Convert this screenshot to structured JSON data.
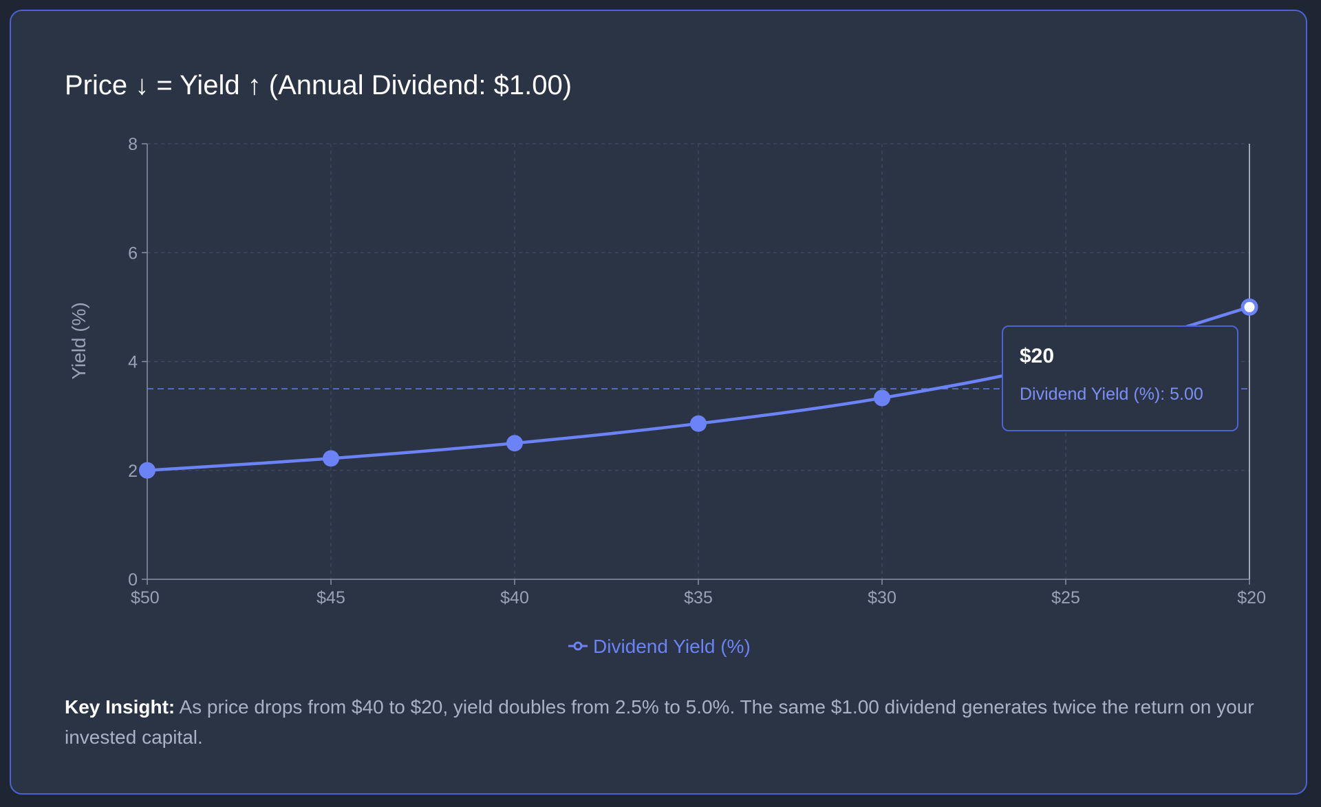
{
  "title": "Price ↓ = Yield ↑ (Annual Dividend: $1.00)",
  "colors": {
    "series": "#6b83f7",
    "card_border": "#4b63d6",
    "background": "#2b3445"
  },
  "chart_data": {
    "type": "line",
    "categories": [
      "$50",
      "$45",
      "$40",
      "$35",
      "$30",
      "$25",
      "$20"
    ],
    "x_prices": [
      50,
      45,
      40,
      35,
      30,
      25,
      20
    ],
    "series": [
      {
        "name": "Dividend Yield (%)",
        "values": [
          2.0,
          2.22,
          2.5,
          2.86,
          3.33,
          4.0,
          5.0
        ]
      }
    ],
    "xlabel": "",
    "ylabel": "Yield (%)",
    "ylim": [
      0,
      8
    ],
    "yticks": [
      "0",
      "2",
      "4",
      "6",
      "8"
    ],
    "reference_line": 3.5,
    "grid": true,
    "legend": "bottom-center",
    "active_point_index": 6
  },
  "tooltip": {
    "title": "$20",
    "body": "Dividend Yield (%): 5.00"
  },
  "insight": {
    "label": "Key Insight:",
    "text": " As price drops from $40 to $20, yield doubles from 2.5% to 5.0%. The same $1.00 dividend generates twice the return on your invested capital."
  }
}
